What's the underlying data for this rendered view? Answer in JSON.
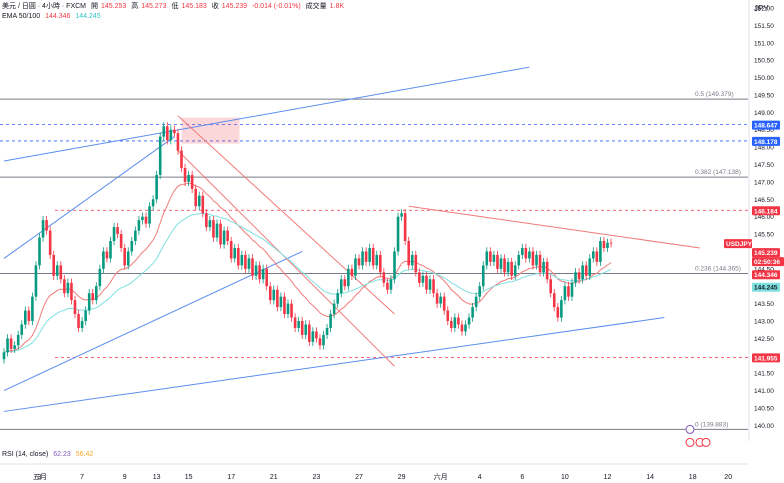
{
  "header": {
    "symbol_line": "美元 / 日圓 · 4小時 · FXCM",
    "open_label": "開",
    "open": "145.253",
    "high_label": "高",
    "high": "145.273",
    "low_label": "低",
    "low": "145.183",
    "close_label": "收",
    "close": "145.239",
    "change": "-0.014 (-0.01%)",
    "volume_label": "成交量",
    "volume": "1.8K",
    "ema_label": "EMA 50/100",
    "ema50": "144.346",
    "ema100": "144.245",
    "currency": "JPY"
  },
  "rsi": {
    "label": "RSI (14, close)",
    "value1": "62.23",
    "value2": "56.42"
  },
  "colors": {
    "up": "#f23645",
    "down": "#089981",
    "ema50": "#f27a7a",
    "ema100": "#7fe0e0",
    "channel": "#5b8def",
    "fib": "#787b86",
    "red_dash": "#f23645",
    "blue_dash": "#2962ff"
  },
  "chart_data": {
    "type": "candlestick",
    "pair": "USDJPY",
    "timeframe": "4h",
    "y_axis": {
      "min": 139.55,
      "max": 152.0,
      "ticks": [
        "139.50",
        "140.00",
        "140.50",
        "141.00",
        "141.50",
        "142.00",
        "142.50",
        "143.00",
        "143.50",
        "144.00",
        "144.50",
        "145.00",
        "145.50",
        "146.00",
        "146.50",
        "147.00",
        "147.50",
        "148.00",
        "148.50",
        "149.00",
        "149.50",
        "150.00",
        "150.50",
        "151.00",
        "151.50",
        "152.00"
      ]
    },
    "x_ticks": [
      {
        "label": "五月",
        "i": 0
      },
      {
        "label": "3",
        "i": 10
      },
      {
        "label": "7",
        "i": 22
      },
      {
        "label": "9",
        "i": 34
      },
      {
        "label": "13",
        "i": 43
      },
      {
        "label": "15",
        "i": 52
      },
      {
        "label": "17",
        "i": 64
      },
      {
        "label": "21",
        "i": 76
      },
      {
        "label": "23",
        "i": 88
      },
      {
        "label": "27",
        "i": 100
      },
      {
        "label": "29",
        "i": 112
      },
      {
        "label": "六月",
        "i": 123
      },
      {
        "label": "4",
        "i": 134
      },
      {
        "label": "6",
        "i": 146
      },
      {
        "label": "10",
        "i": 158
      },
      {
        "label": "12",
        "i": 170
      },
      {
        "label": "14",
        "i": 182
      },
      {
        "label": "18",
        "i": 194
      },
      {
        "label": "20",
        "i": 204
      }
    ],
    "price_labels": [
      {
        "text": "148.647",
        "value": 148.647,
        "bg": "#2962ff"
      },
      {
        "text": "148.178",
        "value": 148.178,
        "bg": "#2962ff"
      },
      {
        "text": "146.184",
        "value": 146.184,
        "bg": "#f23645"
      },
      {
        "text": "USDJPY",
        "value": 145.239,
        "bg": "#f23645"
      },
      {
        "text": "145.239",
        "value": 145.239,
        "bg": "#f23645"
      },
      {
        "text": "02:50:36",
        "value": 145.239,
        "bg": "#f23645"
      },
      {
        "text": "144.346",
        "value": 144.346,
        "bg": "#f23645"
      },
      {
        "text": "144.245",
        "value": 144.245,
        "bg": "#7fe0e0"
      },
      {
        "text": "141.955",
        "value": 141.955,
        "bg": "#f23645"
      }
    ],
    "fib_levels": [
      {
        "ratio": "0.5",
        "value": 149.379,
        "text": "0.5 (149.379)"
      },
      {
        "ratio": "0.382",
        "value": 147.138,
        "text": "0.382 (147.138)"
      },
      {
        "ratio": "0.236",
        "value": 144.365,
        "text": "0.236 (144.365)"
      },
      {
        "ratio": "0",
        "value": 139.883,
        "text": "0 (139.883)"
      }
    ],
    "dashed_levels": [
      {
        "value": 148.647,
        "color": "blue"
      },
      {
        "value": 148.178,
        "color": "blue"
      },
      {
        "value": 146.184,
        "color": "red"
      },
      {
        "value": 141.955,
        "color": "red"
      }
    ],
    "trendlines": [
      {
        "name": "upper channel",
        "color": "blue",
        "from": {
          "i": 0,
          "v": 147.6
        },
        "to": {
          "i": 148,
          "v": 150.3
        }
      },
      {
        "name": "upper channel lower",
        "color": "blue",
        "from": {
          "i": 0,
          "v": 144.8
        },
        "to": {
          "i": 48,
          "v": 148.3
        }
      },
      {
        "name": "lower channel 1",
        "color": "blue",
        "from": {
          "i": 0,
          "v": 141.0
        },
        "to": {
          "i": 84,
          "v": 145.0
        }
      },
      {
        "name": "lower support",
        "color": "blue",
        "from": {
          "i": 0,
          "v": 140.4
        },
        "to": {
          "i": 186,
          "v": 143.1
        }
      },
      {
        "name": "falling wedge top",
        "color": "red",
        "from": {
          "i": 49,
          "v": 148.9
        },
        "to": {
          "i": 110,
          "v": 143.2
        }
      },
      {
        "name": "falling wedge bottom",
        "color": "red",
        "from": {
          "i": 49,
          "v": 147.9
        },
        "to": {
          "i": 110,
          "v": 141.7
        }
      },
      {
        "name": "descending resistance",
        "color": "red",
        "from": {
          "i": 114,
          "v": 146.3
        },
        "to": {
          "i": 196,
          "v": 145.1
        }
      }
    ],
    "candles_approx_close": [
      142.1,
      142.5,
      142.2,
      142.3,
      142.6,
      142.9,
      143.3,
      143.0,
      143.7,
      144.6,
      145.4,
      145.9,
      145.6,
      144.9,
      144.3,
      144.6,
      144.2,
      143.8,
      144.1,
      143.6,
      143.2,
      142.8,
      143.0,
      143.3,
      143.8,
      143.6,
      144.0,
      144.5,
      145.0,
      144.8,
      145.3,
      145.7,
      145.5,
      145.1,
      144.6,
      145.0,
      145.3,
      145.6,
      145.9,
      146.0,
      145.8,
      146.3,
      146.5,
      147.2,
      148.3,
      148.6,
      148.2,
      148.5,
      148.4,
      147.9,
      147.4,
      147.0,
      147.2,
      146.8,
      146.3,
      146.6,
      146.1,
      145.7,
      145.9,
      145.4,
      145.8,
      145.2,
      145.6,
      145.3,
      144.8,
      145.1,
      144.6,
      144.9,
      144.5,
      144.8,
      144.3,
      144.6,
      144.2,
      144.5,
      144.0,
      143.6,
      143.9,
      143.4,
      143.7,
      143.2,
      143.5,
      143.1,
      142.8,
      143.0,
      142.6,
      142.9,
      142.4,
      142.7,
      142.5,
      142.3,
      142.6,
      142.8,
      143.2,
      143.5,
      143.8,
      144.2,
      144.0,
      144.5,
      144.3,
      144.8,
      144.6,
      145.0,
      144.7,
      145.1,
      144.6,
      144.9,
      144.4,
      144.1,
      143.9,
      144.2,
      145.0,
      146.0,
      146.1,
      145.3,
      144.6,
      144.9,
      144.4,
      144.1,
      144.3,
      143.9,
      144.2,
      143.8,
      143.5,
      143.7,
      143.3,
      143.0,
      142.8,
      143.1,
      142.9,
      142.7,
      142.9,
      143.1,
      143.4,
      143.7,
      144.0,
      144.6,
      145.0,
      144.7,
      144.9,
      144.5,
      144.8,
      144.4,
      144.7,
      144.3,
      144.6,
      144.9,
      145.1,
      144.8,
      145.0,
      144.6,
      144.9,
      144.4,
      144.7,
      144.2,
      143.8,
      143.4,
      143.1,
      143.6,
      144.0,
      143.7,
      144.1,
      144.4,
      144.2,
      144.6,
      144.3,
      144.8,
      145.0,
      144.7,
      145.3,
      145.1,
      145.25,
      145.239
    ]
  }
}
